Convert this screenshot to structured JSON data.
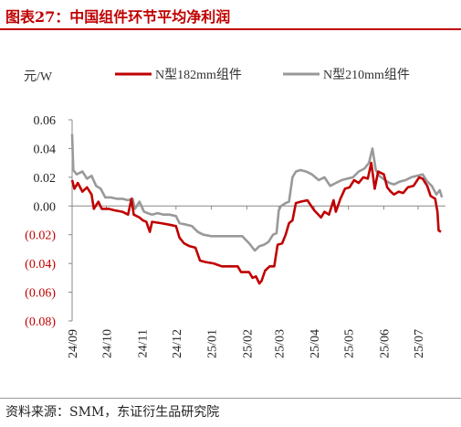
{
  "header": {
    "title": "图表27：中国组件环节平均净利润"
  },
  "footer": {
    "source": "资料来源：SMM，东证衍生品研究院"
  },
  "chart_data": {
    "type": "line",
    "unit_label": "元/W",
    "ylim": [
      -0.08,
      0.06
    ],
    "y_ticks": [
      {
        "value": 0.06,
        "label": "0.06"
      },
      {
        "value": 0.04,
        "label": "0.04"
      },
      {
        "value": 0.02,
        "label": "0.02"
      },
      {
        "value": 0.0,
        "label": "0.00"
      },
      {
        "value": -0.02,
        "label": "(0.02)"
      },
      {
        "value": -0.04,
        "label": "(0.04)"
      },
      {
        "value": -0.06,
        "label": "(0.06)"
      },
      {
        "value": -0.08,
        "label": "(0.08)"
      }
    ],
    "x_range": [
      "2024-09-01",
      "2025-07-25"
    ],
    "x_ticks": [
      {
        "date": "2024-09-01",
        "label": "24/09"
      },
      {
        "date": "2024-10-01",
        "label": "24/10"
      },
      {
        "date": "2024-11-01",
        "label": "24/11"
      },
      {
        "date": "2024-12-01",
        "label": "24/12"
      },
      {
        "date": "2025-01-01",
        "label": "25/01"
      },
      {
        "date": "2025-02-01",
        "label": "25/02"
      },
      {
        "date": "2025-03-01",
        "label": "25/03"
      },
      {
        "date": "2025-04-01",
        "label": "25/04"
      },
      {
        "date": "2025-05-01",
        "label": "25/05"
      },
      {
        "date": "2025-06-01",
        "label": "25/06"
      },
      {
        "date": "2025-07-01",
        "label": "25/07"
      }
    ],
    "grid": false,
    "legend_position": "top",
    "negative_label_color": "#c00000",
    "series": [
      {
        "name": "N型182mm组件",
        "color": "#c00000",
        "points": [
          [
            "2024-09-01",
            0.018
          ],
          [
            "2024-09-03",
            0.012
          ],
          [
            "2024-09-06",
            0.016
          ],
          [
            "2024-09-10",
            0.01
          ],
          [
            "2024-09-14",
            0.013
          ],
          [
            "2024-09-18",
            0.008
          ],
          [
            "2024-09-20",
            -0.002
          ],
          [
            "2024-09-24",
            0.003
          ],
          [
            "2024-09-27",
            -0.002
          ],
          [
            "2024-10-03",
            -0.002
          ],
          [
            "2024-10-08",
            -0.003
          ],
          [
            "2024-10-15",
            -0.004
          ],
          [
            "2024-10-20",
            -0.006
          ],
          [
            "2024-10-23",
            0.005
          ],
          [
            "2024-10-25",
            -0.006
          ],
          [
            "2024-10-30",
            -0.008
          ],
          [
            "2024-11-02",
            -0.01
          ],
          [
            "2024-11-05",
            -0.011
          ],
          [
            "2024-11-08",
            -0.018
          ],
          [
            "2024-11-10",
            -0.011
          ],
          [
            "2024-11-18",
            -0.012
          ],
          [
            "2024-11-25",
            -0.013
          ],
          [
            "2024-12-01",
            -0.014
          ],
          [
            "2024-12-04",
            -0.022
          ],
          [
            "2024-12-08",
            -0.026
          ],
          [
            "2024-12-13",
            -0.028
          ],
          [
            "2024-12-18",
            -0.029
          ],
          [
            "2024-12-22",
            -0.038
          ],
          [
            "2024-12-27",
            -0.039
          ],
          [
            "2025-01-03",
            -0.04
          ],
          [
            "2025-01-10",
            -0.042
          ],
          [
            "2025-01-18",
            -0.042
          ],
          [
            "2025-01-24",
            -0.042
          ],
          [
            "2025-01-27",
            -0.046
          ],
          [
            "2025-02-03",
            -0.046
          ],
          [
            "2025-02-06",
            -0.05
          ],
          [
            "2025-02-09",
            -0.049
          ],
          [
            "2025-02-12",
            -0.054
          ],
          [
            "2025-02-14",
            -0.052
          ],
          [
            "2025-02-17",
            -0.045
          ],
          [
            "2025-02-21",
            -0.042
          ],
          [
            "2025-02-25",
            -0.042
          ],
          [
            "2025-02-28",
            -0.027
          ],
          [
            "2025-03-04",
            -0.026
          ],
          [
            "2025-03-07",
            -0.02
          ],
          [
            "2025-03-10",
            -0.012
          ],
          [
            "2025-03-13",
            -0.01
          ],
          [
            "2025-03-16",
            0.002
          ],
          [
            "2025-03-20",
            0.003
          ],
          [
            "2025-03-26",
            0.004
          ],
          [
            "2025-04-01",
            -0.003
          ],
          [
            "2025-04-07",
            -0.008
          ],
          [
            "2025-04-10",
            -0.004
          ],
          [
            "2025-04-14",
            -0.006
          ],
          [
            "2025-04-18",
            0.004
          ],
          [
            "2025-04-20",
            -0.004
          ],
          [
            "2025-04-24",
            0.005
          ],
          [
            "2025-04-28",
            0.012
          ],
          [
            "2025-05-02",
            0.013
          ],
          [
            "2025-05-06",
            0.018
          ],
          [
            "2025-05-10",
            0.016
          ],
          [
            "2025-05-14",
            0.02
          ],
          [
            "2025-05-18",
            0.019
          ],
          [
            "2025-05-21",
            0.03
          ],
          [
            "2025-05-24",
            0.012
          ],
          [
            "2025-05-27",
            0.024
          ],
          [
            "2025-06-01",
            0.022
          ],
          [
            "2025-06-04",
            0.013
          ],
          [
            "2025-06-07",
            0.01
          ],
          [
            "2025-06-10",
            0.008
          ],
          [
            "2025-06-14",
            0.01
          ],
          [
            "2025-06-18",
            0.009
          ],
          [
            "2025-06-22",
            0.013
          ],
          [
            "2025-06-27",
            0.014
          ],
          [
            "2025-07-02",
            0.02
          ],
          [
            "2025-07-05",
            0.019
          ],
          [
            "2025-07-09",
            0.014
          ],
          [
            "2025-07-12",
            0.007
          ],
          [
            "2025-07-16",
            0.005
          ],
          [
            "2025-07-18",
            -0.004
          ],
          [
            "2025-07-19",
            -0.017
          ],
          [
            "2025-07-21",
            -0.018
          ]
        ]
      },
      {
        "name": "N型210mm组件",
        "color": "#999999",
        "points": [
          [
            "2024-09-01",
            0.05
          ],
          [
            "2024-09-02",
            0.025
          ],
          [
            "2024-09-05",
            0.022
          ],
          [
            "2024-09-10",
            0.024
          ],
          [
            "2024-09-14",
            0.019
          ],
          [
            "2024-09-18",
            0.021
          ],
          [
            "2024-09-22",
            0.014
          ],
          [
            "2024-09-26",
            0.012
          ],
          [
            "2024-09-30",
            0.006
          ],
          [
            "2024-10-05",
            0.006
          ],
          [
            "2024-10-10",
            0.005
          ],
          [
            "2024-10-15",
            0.005
          ],
          [
            "2024-10-20",
            0.004
          ],
          [
            "2024-10-24",
            0.005
          ],
          [
            "2024-10-26",
            -0.002
          ],
          [
            "2024-10-30",
            0.003
          ],
          [
            "2024-11-03",
            -0.004
          ],
          [
            "2024-11-06",
            -0.005
          ],
          [
            "2024-11-10",
            -0.006
          ],
          [
            "2024-11-15",
            -0.005
          ],
          [
            "2024-11-20",
            -0.006
          ],
          [
            "2024-11-25",
            -0.006
          ],
          [
            "2024-12-01",
            -0.007
          ],
          [
            "2024-12-04",
            -0.012
          ],
          [
            "2024-12-10",
            -0.013
          ],
          [
            "2024-12-15",
            -0.014
          ],
          [
            "2024-12-20",
            -0.018
          ],
          [
            "2024-12-25",
            -0.02
          ],
          [
            "2025-01-01",
            -0.021
          ],
          [
            "2025-01-08",
            -0.021
          ],
          [
            "2025-01-15",
            -0.021
          ],
          [
            "2025-01-22",
            -0.021
          ],
          [
            "2025-01-28",
            -0.021
          ],
          [
            "2025-02-03",
            -0.026
          ],
          [
            "2025-02-08",
            -0.031
          ],
          [
            "2025-02-12",
            -0.028
          ],
          [
            "2025-02-16",
            -0.027
          ],
          [
            "2025-02-20",
            -0.025
          ],
          [
            "2025-02-24",
            -0.02
          ],
          [
            "2025-02-27",
            -0.019
          ],
          [
            "2025-03-01",
            -0.003
          ],
          [
            "2025-03-03",
            0.0
          ],
          [
            "2025-03-07",
            0.002
          ],
          [
            "2025-03-10",
            0.003
          ],
          [
            "2025-03-13",
            0.02
          ],
          [
            "2025-03-16",
            0.024
          ],
          [
            "2025-03-20",
            0.025
          ],
          [
            "2025-03-25",
            0.024
          ],
          [
            "2025-03-30",
            0.022
          ],
          [
            "2025-04-05",
            0.018
          ],
          [
            "2025-04-10",
            0.02
          ],
          [
            "2025-04-15",
            0.014
          ],
          [
            "2025-04-20",
            0.016
          ],
          [
            "2025-04-25",
            0.018
          ],
          [
            "2025-04-30",
            0.019
          ],
          [
            "2025-05-05",
            0.02
          ],
          [
            "2025-05-10",
            0.024
          ],
          [
            "2025-05-15",
            0.026
          ],
          [
            "2025-05-19",
            0.03
          ],
          [
            "2025-05-22",
            0.04
          ],
          [
            "2025-05-25",
            0.025
          ],
          [
            "2025-05-28",
            0.021
          ],
          [
            "2025-06-02",
            0.018
          ],
          [
            "2025-06-06",
            0.016
          ],
          [
            "2025-06-10",
            0.015
          ],
          [
            "2025-06-15",
            0.017
          ],
          [
            "2025-06-20",
            0.018
          ],
          [
            "2025-06-25",
            0.02
          ],
          [
            "2025-06-30",
            0.021
          ],
          [
            "2025-07-05",
            0.022
          ],
          [
            "2025-07-09",
            0.017
          ],
          [
            "2025-07-13",
            0.014
          ],
          [
            "2025-07-17",
            0.008
          ],
          [
            "2025-07-20",
            0.011
          ],
          [
            "2025-07-22",
            0.006
          ]
        ]
      }
    ]
  }
}
